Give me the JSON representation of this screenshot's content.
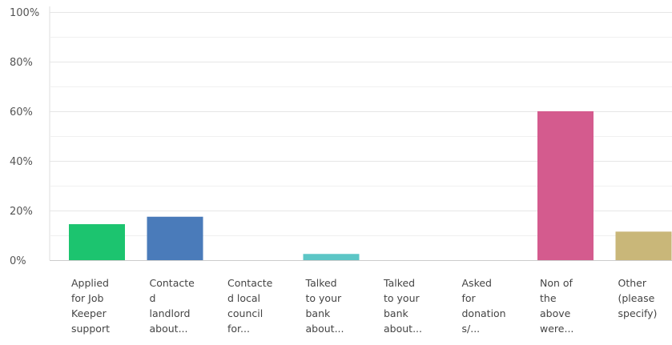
{
  "chart_data": {
    "type": "bar",
    "title": "",
    "xlabel": "",
    "ylabel": "",
    "ylim": [
      0,
      100
    ],
    "yticks": [
      "100%",
      "80%",
      "60%",
      "40%",
      "20%",
      "0%"
    ],
    "ytick_values": [
      100,
      80,
      60,
      40,
      20,
      0
    ],
    "grid": true,
    "categories": [
      [
        "Applied",
        "for Job",
        "Keeper",
        "support"
      ],
      [
        "Contacte",
        "d",
        "landlord",
        "about..."
      ],
      [
        "Contacte",
        "d local",
        "council",
        "for..."
      ],
      [
        "Talked",
        "to your",
        "bank",
        "about..."
      ],
      [
        "Talked",
        "to your",
        "bank",
        "about..."
      ],
      [
        "Asked",
        "for",
        "donation",
        "s/..."
      ],
      [
        "Non of",
        "the",
        "above",
        "were..."
      ],
      [
        "Other",
        "(please",
        "specify)",
        ""
      ]
    ],
    "values": [
      14.5,
      17.5,
      0,
      2.5,
      0,
      0,
      60,
      11.5
    ],
    "colors": [
      "#1cc46f",
      "#4a7bba",
      "#999999",
      "#5cc6c6",
      "#999999",
      "#999999",
      "#d45b8e",
      "#c9b779"
    ]
  }
}
